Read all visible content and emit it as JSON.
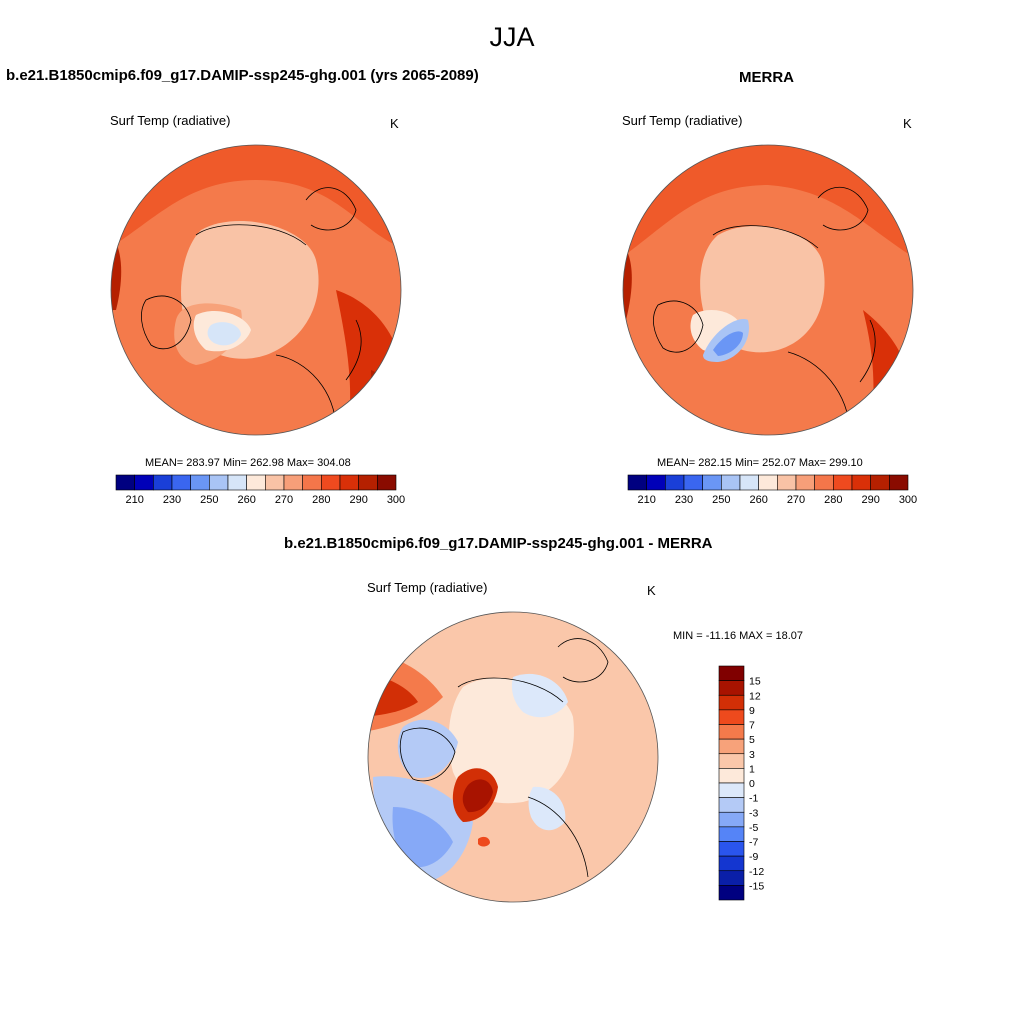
{
  "page": {
    "title": "JJA"
  },
  "panels": [
    {
      "id": "model",
      "title": "b.e21.B1850cmip6.f09_g17.DAMIP-ssp245-ghg.001 (yrs 2065-2089)",
      "variable": "Surf Temp (radiative)",
      "units": "K",
      "stats": "MEAN= 283.97  Min= 262.98  Max= 304.08"
    },
    {
      "id": "obs",
      "title": "MERRA",
      "variable": "Surf Temp (radiative)",
      "units": "K",
      "stats": "MEAN= 282.15  Min= 252.07  Max= 299.10"
    },
    {
      "id": "diff",
      "title": "b.e21.B1850cmip6.f09_g17.DAMIP-ssp245-ghg.001 - MERRA",
      "variable": "Surf Temp (radiative)",
      "units": "K",
      "stats": "MIN = -11.16 MAX =  18.07"
    }
  ],
  "colorbar_abs": {
    "colors": [
      "#000080",
      "#0000b8",
      "#1a3fd8",
      "#3a66f0",
      "#6a96f5",
      "#a9c4f5",
      "#d6e5f8",
      "#fde9da",
      "#f9c3a6",
      "#f79f79",
      "#f4764a",
      "#ef4a1f",
      "#d93008",
      "#b52000",
      "#8a0b00"
    ],
    "labels": [
      "210",
      "230",
      "250",
      "260",
      "270",
      "280",
      "290",
      "300"
    ]
  },
  "colorbar_diff": {
    "colors": [
      "#000080",
      "#0a1fa8",
      "#1436d0",
      "#2a55ee",
      "#5584f7",
      "#86a9f7",
      "#b4caf6",
      "#dce8fa",
      "#fde9da",
      "#fac7aa",
      "#f7a27a",
      "#f47a4b",
      "#ee4a1d",
      "#d22f06",
      "#a81300",
      "#800000"
    ],
    "labels": [
      "15",
      "12",
      "9",
      "7",
      "5",
      "3",
      "1",
      "0",
      "-1",
      "-3",
      "-5",
      "-7",
      "-9",
      "-12",
      "-15"
    ]
  }
}
